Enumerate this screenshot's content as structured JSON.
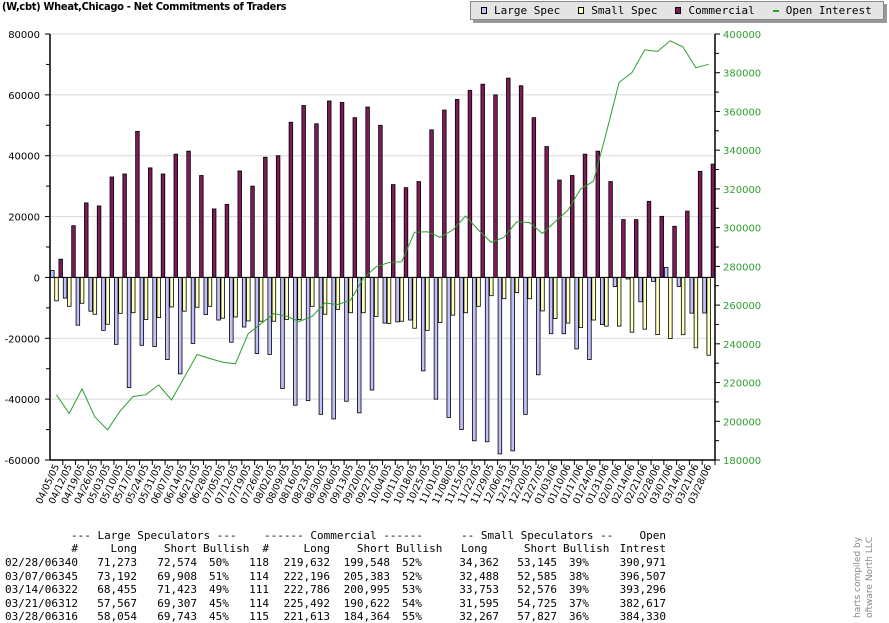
{
  "title": "(W,cbt) Wheat,Chicago - Net Commitments of Traders",
  "legend": [
    {
      "label": "Large Spec",
      "color": "#c0c0ff",
      "kind": "box"
    },
    {
      "label": "Small Spec",
      "color": "#ffffc0",
      "kind": "box"
    },
    {
      "label": "Commercial",
      "color": "#7f1a5a",
      "kind": "box"
    },
    {
      "label": "Open Interest",
      "color": "#2e9e2e",
      "kind": "line"
    }
  ],
  "chart_data": {
    "type": "bar",
    "title": "(W,cbt) Wheat,Chicago - Net Commitments of Traders",
    "ylim": [
      -60000,
      80000
    ],
    "y2lim": [
      180000,
      400000
    ],
    "yticks": [
      80000,
      60000,
      40000,
      20000,
      0,
      -20000,
      -40000,
      -60000
    ],
    "y2ticks": [
      400000,
      380000,
      360000,
      340000,
      320000,
      300000,
      280000,
      260000,
      240000,
      220000,
      200000,
      180000
    ],
    "grid": true,
    "legend_position": "top-right",
    "categories": [
      "04/05/05",
      "04/12/05",
      "04/19/05",
      "04/26/05",
      "05/03/05",
      "05/10/05",
      "05/17/05",
      "05/24/05",
      "05/31/05",
      "06/07/05",
      "06/14/05",
      "06/21/05",
      "06/28/05",
      "07/05/05",
      "07/12/05",
      "07/19/05",
      "07/26/05",
      "08/02/05",
      "08/09/05",
      "08/16/05",
      "08/23/05",
      "08/30/05",
      "09/06/05",
      "09/13/05",
      "09/20/05",
      "09/27/05",
      "10/04/05",
      "10/11/05",
      "10/18/05",
      "10/25/05",
      "11/01/05",
      "11/08/05",
      "11/15/05",
      "11/22/05",
      "11/29/05",
      "12/06/05",
      "12/13/05",
      "12/20/05",
      "12/27/05",
      "01/03/06",
      "01/10/06",
      "01/17/06",
      "01/24/06",
      "01/31/06",
      "02/07/06",
      "02/14/06",
      "02/21/06",
      "02/28/06",
      "03/07/06",
      "03/14/06",
      "03/21/06",
      "03/28/06"
    ],
    "series": [
      {
        "name": "Large Spec",
        "axis": "left",
        "color": "#c0c0ff",
        "values": [
          2300,
          -6800,
          -15700,
          -11100,
          -17400,
          -22000,
          -36200,
          -22300,
          -22700,
          -27000,
          -31700,
          -21700,
          -12200,
          -14000,
          -21300,
          -16300,
          -25000,
          -25300,
          -36500,
          -42000,
          -40500,
          -45000,
          -46500,
          -40700,
          -44500,
          -37000,
          -15000,
          -14600,
          -14000,
          -30700,
          -40000,
          -46000,
          -50000,
          -53700,
          -54000,
          -58000,
          -57000,
          -45000,
          -32000,
          -18500,
          -18500,
          -23500,
          -27000,
          -15500,
          -3000,
          -500,
          -8000,
          -1301,
          3284,
          -2968,
          -11740,
          -11689
        ]
      },
      {
        "name": "Small Spec",
        "axis": "left",
        "color": "#ffffc0",
        "values": [
          -7700,
          -9500,
          -8500,
          -12100,
          -15400,
          -11800,
          -11600,
          -13800,
          -13200,
          -9700,
          -11100,
          -9800,
          -9500,
          -13400,
          -13000,
          -14300,
          -14400,
          -14400,
          -13800,
          -13800,
          -9500,
          -12100,
          -10500,
          -11600,
          -11600,
          -12800,
          -15100,
          -14400,
          -16700,
          -17400,
          -14800,
          -12400,
          -11600,
          -9500,
          -6000,
          -7000,
          -5000,
          -7000,
          -11000,
          -13500,
          -15000,
          -16500,
          -14000,
          -16000,
          -16000,
          -18000,
          -17000,
          -18783,
          -20097,
          -18823,
          -23130,
          -25560
        ]
      },
      {
        "name": "Commercial",
        "axis": "left",
        "color": "#7f1a5a",
        "values": [
          6000,
          17000,
          24500,
          23500,
          33000,
          34000,
          48000,
          36000,
          34000,
          40500,
          41500,
          33500,
          22500,
          24000,
          35000,
          30000,
          39500,
          40000,
          51000,
          56500,
          50500,
          58000,
          57500,
          52500,
          56000,
          50000,
          30500,
          29500,
          31500,
          48500,
          55000,
          58500,
          61500,
          63500,
          60000,
          65500,
          63000,
          52500,
          43000,
          32000,
          33500,
          40500,
          41500,
          31500,
          19000,
          19000,
          25000,
          20084,
          16813,
          21791,
          34870,
          37249
        ]
      },
      {
        "name": "Open Interest",
        "axis": "right",
        "type": "line",
        "color": "#2e9e2e",
        "values": [
          213700,
          204000,
          216700,
          202300,
          195600,
          205400,
          212800,
          213700,
          218800,
          211000,
          222700,
          234500,
          232400,
          230500,
          229700,
          245200,
          250400,
          255600,
          254200,
          251600,
          254200,
          261100,
          260300,
          262500,
          273800,
          279800,
          282000,
          282400,
          297600,
          297900,
          295000,
          298800,
          306000,
          298800,
          292400,
          295000,
          303000,
          302600,
          297000,
          303000,
          309000,
          320000,
          324000,
          349000,
          375000,
          380000,
          391800,
          390971,
          396507,
          393296,
          382617,
          384330
        ]
      }
    ]
  },
  "table": {
    "group_headers": {
      "large": "--- Large Speculators ---",
      "commercial": "------ Commercial ------",
      "small": "-- Small Speculators --",
      "open": "Open"
    },
    "col_headers": {
      "l_num": "#",
      "l_long": "Long",
      "l_short": "Short",
      "l_bull": "Bullish",
      "c_num": "#",
      "c_long": "Long",
      "c_short": "Short",
      "c_bull": "Bullish",
      "s_long": "Long",
      "s_short": "Short",
      "s_bull": "Bullish",
      "oi": "Intrest"
    },
    "rows": [
      {
        "date": "02/28/06",
        "l_num": "340",
        "l_long": "71,273",
        "l_short": "72,574",
        "l_bull": "50%",
        "c_num": "118",
        "c_long": "219,632",
        "c_short": "199,548",
        "c_bull": "52%",
        "s_long": "34,362",
        "s_short": "53,145",
        "s_bull": "39%",
        "oi": "390,971"
      },
      {
        "date": "03/07/06",
        "l_num": "345",
        "l_long": "73,192",
        "l_short": "69,908",
        "l_bull": "51%",
        "c_num": "114",
        "c_long": "222,196",
        "c_short": "205,383",
        "c_bull": "52%",
        "s_long": "32,488",
        "s_short": "52,585",
        "s_bull": "38%",
        "oi": "396,507"
      },
      {
        "date": "03/14/06",
        "l_num": "322",
        "l_long": "68,455",
        "l_short": "71,423",
        "l_bull": "49%",
        "c_num": "111",
        "c_long": "222,786",
        "c_short": "200,995",
        "c_bull": "53%",
        "s_long": "33,753",
        "s_short": "52,576",
        "s_bull": "39%",
        "oi": "393,296"
      },
      {
        "date": "03/21/06",
        "l_num": "312",
        "l_long": "57,567",
        "l_short": "69,307",
        "l_bull": "45%",
        "c_num": "114",
        "c_long": "225,492",
        "c_short": "190,622",
        "c_bull": "54%",
        "s_long": "31,595",
        "s_short": "54,725",
        "s_bull": "37%",
        "oi": "382,617"
      },
      {
        "date": "03/28/06",
        "l_num": "316",
        "l_long": "58,054",
        "l_short": "69,743",
        "l_bull": "45%",
        "c_num": "115",
        "c_long": "221,613",
        "c_short": "184,364",
        "c_bull": "55%",
        "s_long": "32,267",
        "s_short": "57,827",
        "s_bull": "36%",
        "oi": "384,330"
      }
    ]
  },
  "credit": [
    "harts compiled by",
    "oftware North LLC"
  ]
}
